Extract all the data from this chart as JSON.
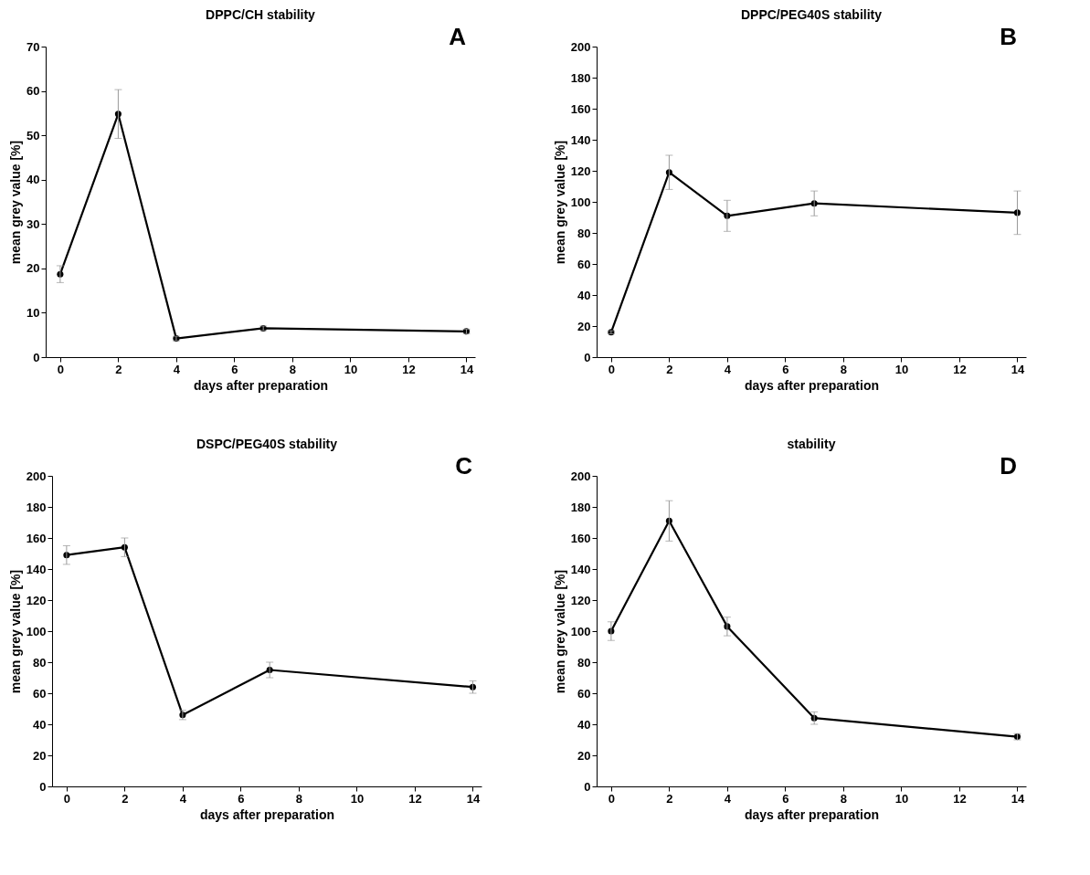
{
  "chart_data": [
    {
      "type": "line",
      "title": "DPPC/CH stability",
      "xlabel": "days after preparation",
      "ylabel": "mean grey value [%]",
      "annotations": [
        "A"
      ],
      "x": [
        0,
        2,
        4,
        7,
        14
      ],
      "values": [
        18.7,
        54.8,
        4.2,
        6.5,
        5.8
      ],
      "errors": [
        1.9,
        5.5,
        0.5,
        0.5,
        0.5
      ],
      "color": "#000000",
      "marker": "circle",
      "line_style": "solid",
      "xlim": [
        -0.5,
        14.3
      ],
      "xticks": [
        0,
        2,
        4,
        6,
        8,
        10,
        12,
        14
      ],
      "ylim": [
        0,
        70
      ],
      "yticks": [
        0,
        10,
        20,
        30,
        40,
        50,
        60,
        70
      ],
      "grid": false
    },
    {
      "type": "line",
      "title": "DPPC/PEG40S stability",
      "xlabel": "days after preparation",
      "ylabel": "mean grey value [%]",
      "annotations": [
        "B"
      ],
      "x": [
        0,
        2,
        4,
        7,
        14
      ],
      "values": [
        16,
        119,
        91,
        99,
        93
      ],
      "errors": [
        1,
        11,
        10,
        8,
        14
      ],
      "color": "#000000",
      "marker": "circle",
      "line_style": "solid",
      "xlim": [
        -0.5,
        14.3
      ],
      "xticks": [
        0,
        2,
        4,
        6,
        8,
        10,
        12,
        14
      ],
      "ylim": [
        0,
        200
      ],
      "yticks": [
        0,
        20,
        40,
        60,
        80,
        100,
        120,
        140,
        160,
        180,
        200
      ],
      "grid": false
    },
    {
      "type": "line",
      "title": "DSPC/PEG40S stability",
      "xlabel": "days after preparation",
      "ylabel": "mean grey value [%]",
      "annotations": [
        "C"
      ],
      "x": [
        0,
        2,
        4,
        7,
        14
      ],
      "values": [
        149,
        154,
        46,
        75,
        64
      ],
      "errors": [
        6,
        6,
        3,
        5,
        4
      ],
      "color": "#000000",
      "marker": "circle",
      "line_style": "solid",
      "xlim": [
        -0.5,
        14.3
      ],
      "xticks": [
        0,
        2,
        4,
        6,
        8,
        10,
        12,
        14
      ],
      "ylim": [
        0,
        200
      ],
      "yticks": [
        0,
        20,
        40,
        60,
        80,
        100,
        120,
        140,
        160,
        180,
        200
      ],
      "grid": false
    },
    {
      "type": "line",
      "title": "stability",
      "xlabel": "days after preparation",
      "ylabel": "mean grey value [%]",
      "annotations": [
        "D"
      ],
      "x": [
        0,
        2,
        4,
        7,
        14
      ],
      "values": [
        100,
        171,
        103,
        44,
        32
      ],
      "errors": [
        6,
        13,
        6,
        4,
        2
      ],
      "color": "#000000",
      "marker": "circle",
      "line_style": "solid",
      "xlim": [
        -0.5,
        14.3
      ],
      "xticks": [
        0,
        2,
        4,
        6,
        8,
        10,
        12,
        14
      ],
      "ylim": [
        0,
        200
      ],
      "yticks": [
        0,
        20,
        40,
        60,
        80,
        100,
        120,
        140,
        160,
        180,
        200
      ],
      "grid": false
    }
  ]
}
